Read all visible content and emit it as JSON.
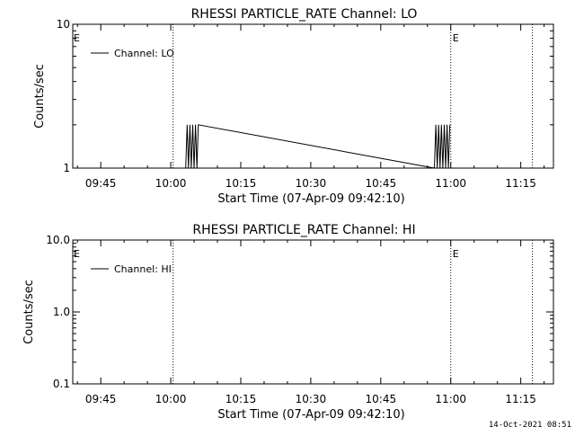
{
  "footer_stamp": "14-Oct-2021 08:51",
  "chart_data": [
    {
      "type": "line",
      "title": "RHESSI PARTICLE_RATE Channel: LO",
      "xlabel": "Start Time (07-Apr-09 09:42:10)",
      "ylabel": "Counts/sec",
      "yscale": "log",
      "ylim": [
        1,
        10
      ],
      "yticks": [
        {
          "value": 1,
          "label": "1"
        },
        {
          "value": 10,
          "label": "10"
        }
      ],
      "xlim": [
        "09:39",
        "11:22"
      ],
      "xticks": [
        "09:45",
        "10:00",
        "10:15",
        "10:30",
        "10:45",
        "11:00",
        "11:15"
      ],
      "legend": {
        "placement": "top-left",
        "entries": [
          "Channel: LO"
        ]
      },
      "markers": [
        {
          "time": "10:00.5",
          "label": ""
        },
        {
          "time": "11:00.0",
          "label": "E"
        },
        {
          "time": "11:17.5",
          "label": ""
        }
      ],
      "edge_labels": [
        {
          "position": "left",
          "label": "E"
        }
      ],
      "series": [
        {
          "name": "Channel: LO",
          "x": [
            "10:03.2",
            "10:03.5",
            "10:03.8",
            "10:04.1",
            "10:04.4",
            "10:04.7",
            "10:05.0",
            "10:05.3",
            "10:05.6",
            "10:05.9",
            "10:56.5",
            "10:56.8",
            "10:57.1",
            "10:57.4",
            "10:57.7",
            "10:58.0",
            "10:58.3",
            "10:58.6",
            "10:58.9",
            "10:59.2",
            "10:59.5",
            "10:59.8"
          ],
          "values": [
            1,
            2,
            1,
            2,
            1,
            2,
            1,
            2,
            1,
            2,
            1,
            2,
            1,
            2,
            1,
            2,
            1,
            2,
            1,
            2,
            1,
            2
          ]
        }
      ]
    },
    {
      "type": "line",
      "title": "RHESSI PARTICLE_RATE Channel: HI",
      "xlabel": "Start Time (07-Apr-09 09:42:10)",
      "ylabel": "Counts/sec",
      "yscale": "log",
      "ylim": [
        0.1,
        10
      ],
      "yticks": [
        {
          "value": 0.1,
          "label": "0.1"
        },
        {
          "value": 1,
          "label": "1.0"
        },
        {
          "value": 10,
          "label": "10.0"
        }
      ],
      "xlim": [
        "09:39",
        "11:22"
      ],
      "xticks": [
        "09:45",
        "10:00",
        "10:15",
        "10:30",
        "10:45",
        "11:00",
        "11:15"
      ],
      "legend": {
        "placement": "top-left",
        "entries": [
          "Channel: HI"
        ]
      },
      "markers": [
        {
          "time": "10:00.5",
          "label": ""
        },
        {
          "time": "11:00.0",
          "label": "E"
        },
        {
          "time": "11:17.5",
          "label": ""
        }
      ],
      "edge_labels": [
        {
          "position": "left",
          "label": "E"
        }
      ],
      "series": [
        {
          "name": "Channel: HI",
          "x": [],
          "values": []
        }
      ]
    }
  ]
}
